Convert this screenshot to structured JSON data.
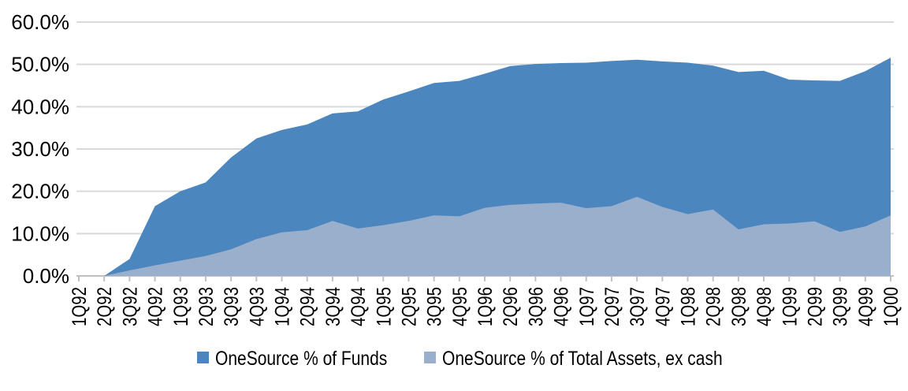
{
  "chart_data": {
    "type": "area",
    "title": "",
    "xlabel": "",
    "ylabel": "",
    "ylim": [
      0,
      60
    ],
    "y_tick_labels": [
      "60.0%",
      "50.0%",
      "40.0%",
      "30.0%",
      "20.0%",
      "10.0%",
      "0.0%"
    ],
    "grid": true,
    "legend_position": "bottom-center",
    "gridline_color": "#D9D9D9",
    "axis_color": "#C0C0C0",
    "text_color": "#000000",
    "categories": [
      "1Q92",
      "2Q92",
      "3Q92",
      "4Q92",
      "1Q93",
      "2Q93",
      "3Q93",
      "4Q93",
      "1Q94",
      "2Q94",
      "3Q94",
      "4Q94",
      "1Q95",
      "2Q95",
      "3Q95",
      "4Q95",
      "1Q96",
      "2Q96",
      "3Q96",
      "4Q96",
      "1Q97",
      "2Q97",
      "3Q97",
      "4Q97",
      "1Q98",
      "2Q98",
      "3Q98",
      "4Q98",
      "1Q99",
      "2Q99",
      "3Q99",
      "4Q99",
      "1Q00"
    ],
    "series": [
      {
        "name": "OneSource % of Funds",
        "color": "#4C86BE",
        "values": [
          0.0,
          0.0,
          4.0,
          16.5,
          20.0,
          22.1,
          28.0,
          32.5,
          34.5,
          35.8,
          38.4,
          38.9,
          41.7,
          43.6,
          45.6,
          46.1,
          47.8,
          49.6,
          50.1,
          50.3,
          50.4,
          50.8,
          51.1,
          50.7,
          50.4,
          49.7,
          48.2,
          48.5,
          46.4,
          46.2,
          46.1,
          48.4,
          51.6
        ]
      },
      {
        "name": "OneSource % of Total Assets, ex cash",
        "color": "#9AAFCC",
        "values": [
          0.0,
          0.0,
          1.3,
          2.5,
          3.6,
          4.7,
          6.3,
          8.7,
          10.3,
          10.8,
          13.0,
          11.2,
          12.0,
          13.0,
          14.3,
          14.1,
          16.1,
          16.8,
          17.1,
          17.3,
          16.0,
          16.5,
          18.7,
          16.3,
          14.6,
          15.7,
          11.0,
          12.2,
          12.4,
          12.9,
          10.4,
          11.7,
          14.3
        ]
      }
    ]
  }
}
